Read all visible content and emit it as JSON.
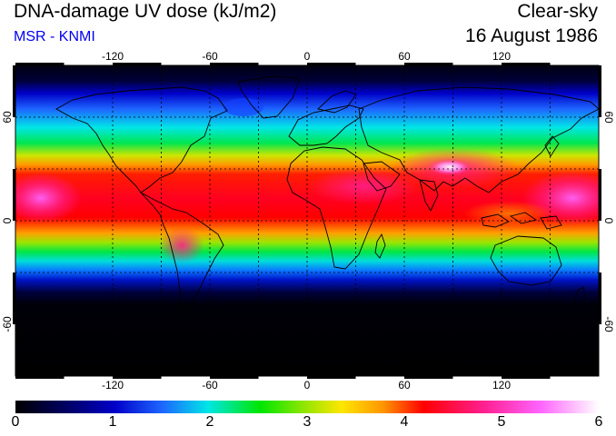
{
  "header": {
    "title": "DNA-damage UV dose (kJ/m2)",
    "source": "MSR - KNMI",
    "sky_condition": "Clear-sky",
    "date": "16 August 1986"
  },
  "map": {
    "projection": "equirectangular",
    "extent": {
      "lon": [
        -180,
        180
      ],
      "lat": [
        -90,
        90
      ]
    },
    "graticule_lon": [
      -120,
      -90,
      -60,
      -30,
      0,
      30,
      60,
      90,
      120,
      150
    ],
    "graticule_lat": [
      -60,
      -30,
      0,
      30,
      60
    ],
    "lon_tick_labels": [
      "-120",
      "-60",
      "0",
      "60",
      "120"
    ],
    "lat_tick_labels": [
      "60",
      "0",
      "-60"
    ],
    "graticule_style": "dotted",
    "variable_field": "DNA-damage UV dose, peaks in subtropics/tropics of northern hemisphere (August), near zero south of -60"
  },
  "colorbar": {
    "min": 0,
    "max": 6,
    "tick_labels": [
      "0",
      "1",
      "2",
      "3",
      "4",
      "5",
      "6"
    ],
    "colors": [
      "#000000",
      "#0000c0",
      "#1e64ff",
      "#00e6e6",
      "#00e600",
      "#cde600",
      "#ff9600",
      "#ff0000",
      "#ff1e8c",
      "#ff64ff",
      "#ffffff"
    ]
  },
  "colors": {
    "subtitle": "#0000ee",
    "coastline": "#000000"
  }
}
